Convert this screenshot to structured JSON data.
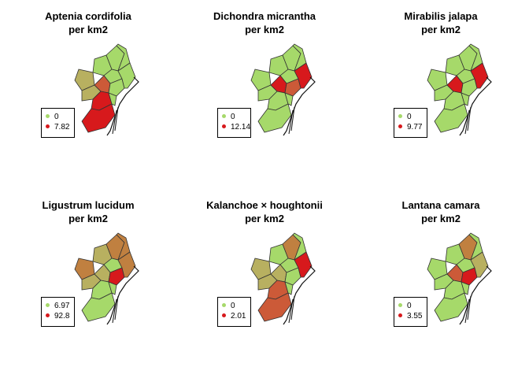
{
  "palette": {
    "low": "#a6d96a",
    "mid_low": "#b8b060",
    "mid": "#c08040",
    "mid_high": "#cc5a38",
    "high": "#d7191c",
    "border": "#333333",
    "coast": "#111111"
  },
  "panels": [
    {
      "title_line1": "Aptenia cordifolia",
      "title_line2": "per km2",
      "legend": [
        {
          "label": "0",
          "color": "#a6d96a"
        },
        {
          "label": "7.82",
          "color": "#d7191c"
        }
      ],
      "district_fills": [
        "#a6d96a",
        "#b8b060",
        "#a6d96a",
        "#a6d96a",
        "#a6d96a",
        "#b8b060",
        "#cc5a38",
        "#a6d96a",
        "#a6d96a",
        "#d7191c",
        "#d7191c",
        "#a6d96a"
      ]
    },
    {
      "title_line1": "Dichondra micrantha",
      "title_line2": "per km2",
      "legend": [
        {
          "label": "0",
          "color": "#a6d96a"
        },
        {
          "label": "12.14",
          "color": "#d7191c"
        }
      ],
      "district_fills": [
        "#a6d96a",
        "#a6d96a",
        "#a6d96a",
        "#a6d96a",
        "#a6d96a",
        "#a6d96a",
        "#d7191c",
        "#cc5a38",
        "#d7191c",
        "#a6d96a",
        "#a6d96a",
        "#a6d96a"
      ]
    },
    {
      "title_line1": "Mirabilis jalapa",
      "title_line2": "per km2",
      "legend": [
        {
          "label": "0",
          "color": "#a6d96a"
        },
        {
          "label": "9.77",
          "color": "#d7191c"
        }
      ],
      "district_fills": [
        "#a6d96a",
        "#a6d96a",
        "#a6d96a",
        "#a6d96a",
        "#a6d96a",
        "#a6d96a",
        "#d7191c",
        "#a6d96a",
        "#d7191c",
        "#a6d96a",
        "#a6d96a",
        "#a6d96a"
      ]
    },
    {
      "title_line1": "Ligustrum lucidum",
      "title_line2": "per km2",
      "legend": [
        {
          "label": "6.97",
          "color": "#a6d96a"
        },
        {
          "label": "92.8",
          "color": "#d7191c"
        }
      ],
      "district_fills": [
        "#b8b060",
        "#c08040",
        "#c08040",
        "#c08040",
        "#a6d96a",
        "#b8b060",
        "#b8b060",
        "#d7191c",
        "#c08040",
        "#a6d96a",
        "#a6d96a",
        "#a6d96a"
      ]
    },
    {
      "title_line1": "Kalanchoe × houghtonii",
      "title_line2": "per km2",
      "legend": [
        {
          "label": "0",
          "color": "#a6d96a"
        },
        {
          "label": "2.01",
          "color": "#d7191c"
        }
      ],
      "district_fills": [
        "#a6d96a",
        "#b8b060",
        "#c08040",
        "#a6d96a",
        "#a6d96a",
        "#b8b060",
        "#b8b060",
        "#a6d96a",
        "#d7191c",
        "#cc5a38",
        "#cc5a38",
        "#a6d96a"
      ]
    },
    {
      "title_line1": "Lantana camara",
      "title_line2": "per km2",
      "legend": [
        {
          "label": "0",
          "color": "#a6d96a"
        },
        {
          "label": "3.55",
          "color": "#d7191c"
        }
      ],
      "district_fills": [
        "#a6d96a",
        "#a6d96a",
        "#c08040",
        "#a6d96a",
        "#a6d96a",
        "#a6d96a",
        "#cc5a38",
        "#d7191c",
        "#b8b060",
        "#a6d96a",
        "#a6d96a",
        "#a6d96a"
      ]
    }
  ]
}
